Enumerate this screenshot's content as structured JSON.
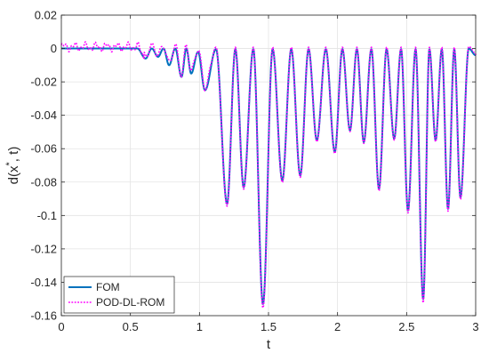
{
  "chart_data": {
    "type": "line",
    "title": "",
    "xlabel": "t",
    "ylabel": "d(x",
    "ylabel_sup": "*",
    "ylabel_tail": ", t)",
    "xlim": [
      0,
      3
    ],
    "ylim": [
      -0.16,
      0.02
    ],
    "xticks": [
      0,
      0.5,
      1,
      1.5,
      2,
      2.5,
      3
    ],
    "xtick_labels": [
      "0",
      "0.5",
      "1",
      "1.5",
      "2",
      "2.5",
      "3"
    ],
    "yticks": [
      0.02,
      0,
      -0.02,
      -0.04,
      -0.06,
      -0.08,
      -0.1,
      -0.12,
      -0.14,
      -0.16
    ],
    "ytick_labels": [
      "0.02",
      "0",
      "-0.02",
      "-0.04",
      "-0.06",
      "-0.08",
      "-0.1",
      "-0.12",
      "-0.14",
      "-0.16"
    ],
    "grid": true,
    "legend_position": "bottom-left",
    "minima": [
      {
        "t": 0.61,
        "d": -0.006
      },
      {
        "t": 0.7,
        "d": -0.005
      },
      {
        "t": 0.78,
        "d": -0.01
      },
      {
        "t": 0.87,
        "d": -0.017
      },
      {
        "t": 0.94,
        "d": -0.015
      },
      {
        "t": 1.04,
        "d": -0.025
      },
      {
        "t": 1.2,
        "d": -0.093
      },
      {
        "t": 1.32,
        "d": -0.083
      },
      {
        "t": 1.46,
        "d": -0.153
      },
      {
        "t": 1.6,
        "d": -0.079
      },
      {
        "t": 1.73,
        "d": -0.076
      },
      {
        "t": 1.85,
        "d": -0.055
      },
      {
        "t": 1.98,
        "d": -0.062
      },
      {
        "t": 2.09,
        "d": -0.049
      },
      {
        "t": 2.19,
        "d": -0.056
      },
      {
        "t": 2.3,
        "d": -0.084
      },
      {
        "t": 2.41,
        "d": -0.054
      },
      {
        "t": 2.51,
        "d": -0.097
      },
      {
        "t": 2.62,
        "d": -0.15
      },
      {
        "t": 2.71,
        "d": -0.055
      },
      {
        "t": 2.8,
        "d": -0.096
      },
      {
        "t": 2.89,
        "d": -0.089
      }
    ],
    "series": [
      {
        "name": "FOM",
        "color": "#0072BD",
        "style": "solid"
      },
      {
        "name": "POD-DL-ROM",
        "color": "#FF00FF",
        "style": "dotted"
      }
    ]
  }
}
